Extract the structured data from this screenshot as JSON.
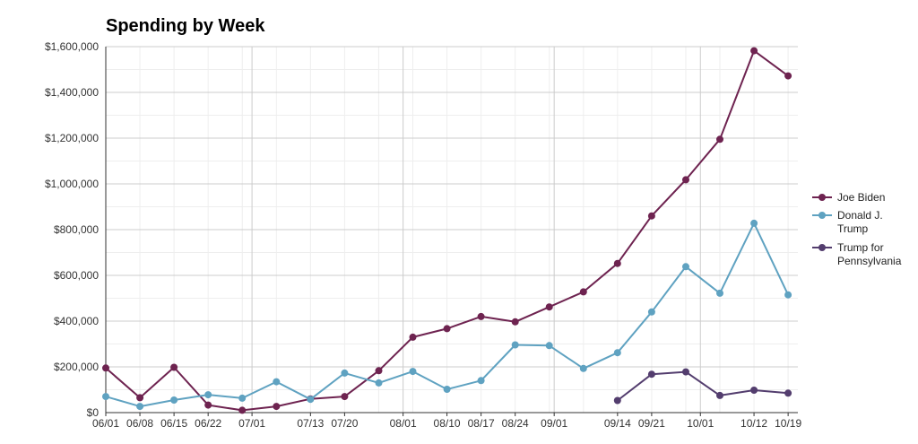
{
  "chart_data": {
    "type": "line",
    "title": "Spending by Week",
    "xlabel": "",
    "ylabel": "",
    "ylim": [
      0,
      1600000
    ],
    "yticks": [
      0,
      200000,
      400000,
      600000,
      800000,
      1000000,
      1200000,
      1400000,
      1600000
    ],
    "ytick_labels": [
      "$0",
      "$200,000",
      "$400,000",
      "$600,000",
      "$800,000",
      "$1,000,000",
      "$1,200,000",
      "$1,400,000",
      "$1,600,000"
    ],
    "xlim": [
      "2020-06-01",
      "2020-10-21"
    ],
    "x": [
      "2020-06-01",
      "2020-06-08",
      "2020-06-15",
      "2020-06-22",
      "2020-06-29",
      "2020-07-06",
      "2020-07-13",
      "2020-07-20",
      "2020-07-27",
      "2020-08-03",
      "2020-08-10",
      "2020-08-17",
      "2020-08-24",
      "2020-08-31",
      "2020-09-07",
      "2020-09-14",
      "2020-09-21",
      "2020-09-28",
      "2020-10-05",
      "2020-10-12",
      "2020-10-19"
    ],
    "xtick_labels": [
      {
        "date": "2020-06-01",
        "label": "06/01"
      },
      {
        "date": "2020-06-08",
        "label": "06/08"
      },
      {
        "date": "2020-06-15",
        "label": "06/15"
      },
      {
        "date": "2020-06-22",
        "label": "06/22"
      },
      {
        "date": "2020-07-01",
        "label": "07/01"
      },
      {
        "date": "2020-07-13",
        "label": "07/13"
      },
      {
        "date": "2020-07-20",
        "label": "07/20"
      },
      {
        "date": "2020-08-01",
        "label": "08/01"
      },
      {
        "date": "2020-08-10",
        "label": "08/10"
      },
      {
        "date": "2020-08-17",
        "label": "08/17"
      },
      {
        "date": "2020-08-24",
        "label": "08/24"
      },
      {
        "date": "2020-09-01",
        "label": "09/01"
      },
      {
        "date": "2020-09-14",
        "label": "09/14"
      },
      {
        "date": "2020-09-21",
        "label": "09/21"
      },
      {
        "date": "2020-10-01",
        "label": "10/01"
      },
      {
        "date": "2020-10-12",
        "label": "10/12"
      },
      {
        "date": "2020-10-19",
        "label": "10/19"
      }
    ],
    "major_gridlines": [
      "2020-07-01",
      "2020-08-01",
      "2020-09-01",
      "2020-10-01"
    ],
    "grid": true,
    "legend_position": "right",
    "series": [
      {
        "name": "Joe Biden",
        "color": "#6e2350",
        "values": [
          195000,
          65000,
          198000,
          33000,
          10000,
          27000,
          60000,
          70000,
          183000,
          330000,
          367000,
          420000,
          397000,
          462000,
          528000,
          652000,
          860000,
          1018000,
          1195000,
          1582000,
          1472000
        ]
      },
      {
        "name": "Donald J. Trump",
        "color": "#5fa2c1",
        "values": [
          70000,
          27000,
          55000,
          78000,
          63000,
          135000,
          58000,
          173000,
          130000,
          180000,
          102000,
          140000,
          296000,
          293000,
          193000,
          262000,
          440000,
          638000,
          522000,
          828000,
          515000
        ]
      },
      {
        "name": "Trump for Pennsylvania",
        "color": "#533d6e",
        "values": [
          null,
          null,
          null,
          null,
          null,
          null,
          null,
          null,
          null,
          null,
          null,
          null,
          null,
          null,
          null,
          53000,
          168000,
          178000,
          75000,
          98000,
          85000
        ]
      }
    ]
  }
}
